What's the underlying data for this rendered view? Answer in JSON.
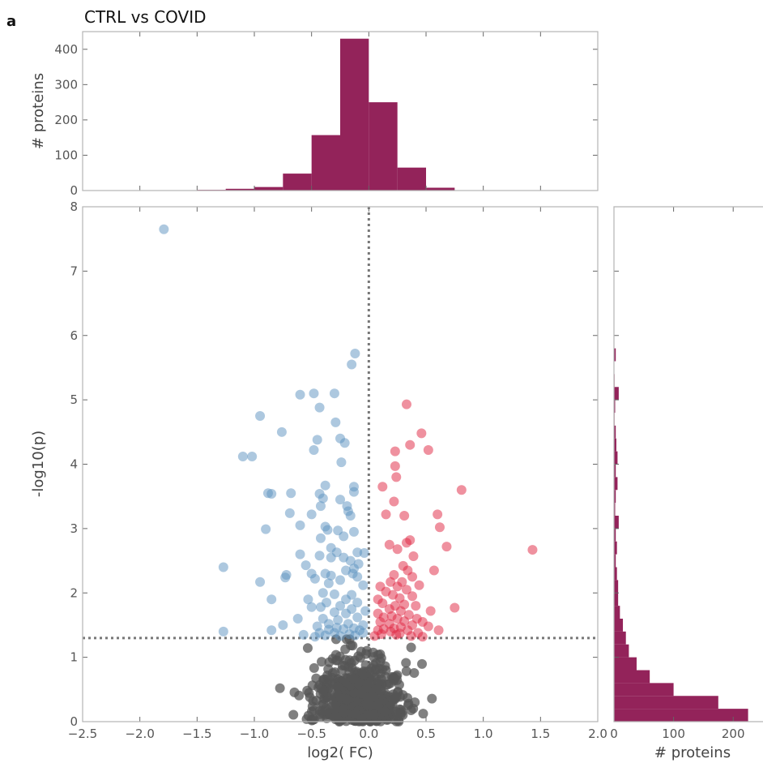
{
  "panel_letter": "a",
  "title": "CTRL vs COVID",
  "colors": {
    "histogram": "#93235a",
    "down": "#5b92c0",
    "up": "#e0243f",
    "nonsig": "#555555",
    "threshold_line": "#777777",
    "frame": "#b4b4b4"
  },
  "chart_data": [
    {
      "type": "scatter",
      "name": "volcano",
      "xlabel": "log2( FC)",
      "ylabel": "-log10(p)",
      "xlim": [
        -2.5,
        2.0
      ],
      "ylim": [
        0,
        8
      ],
      "xticks": [
        -2.5,
        -2.0,
        -1.5,
        -1.0,
        -0.5,
        0.0,
        0.5,
        1.0,
        1.5,
        2.0
      ],
      "xtick_labels": [
        "−2.5",
        "−2.0",
        "−1.5",
        "−1.0",
        "−0.5",
        "0.0",
        "0.5",
        "1.0",
        "1.5",
        "2.0"
      ],
      "yticks": [
        0,
        1,
        2,
        3,
        4,
        5,
        6,
        7,
        8
      ],
      "ytick_labels": [
        "0",
        "1",
        "2",
        "3",
        "4",
        "5",
        "6",
        "7",
        "8"
      ],
      "threshold_y": 1.3,
      "threshold_x": 0.0,
      "grid": false,
      "series": [
        {
          "category": "down",
          "points": [
            [
              -1.79,
              7.65
            ],
            [
              -0.12,
              5.72
            ],
            [
              -0.15,
              5.55
            ],
            [
              -0.6,
              5.08
            ],
            [
              -0.48,
              5.1
            ],
            [
              -0.3,
              5.1
            ],
            [
              -0.43,
              4.88
            ],
            [
              -0.95,
              4.75
            ],
            [
              -0.29,
              4.65
            ],
            [
              -0.76,
              4.5
            ],
            [
              -0.45,
              4.38
            ],
            [
              -0.25,
              4.4
            ],
            [
              -0.21,
              4.33
            ],
            [
              -0.48,
              4.22
            ],
            [
              -1.1,
              4.12
            ],
            [
              -1.02,
              4.12
            ],
            [
              -0.24,
              4.03
            ],
            [
              -0.88,
              3.55
            ],
            [
              -0.68,
              3.55
            ],
            [
              -0.43,
              3.54
            ],
            [
              -0.13,
              3.57
            ],
            [
              -0.38,
              3.67
            ],
            [
              -0.13,
              3.65
            ],
            [
              -0.85,
              3.54
            ],
            [
              -0.4,
              3.47
            ],
            [
              -0.25,
              3.45
            ],
            [
              -0.19,
              3.35
            ],
            [
              -0.42,
              3.35
            ],
            [
              -0.69,
              3.24
            ],
            [
              -0.5,
              3.22
            ],
            [
              -0.18,
              3.27
            ],
            [
              -0.16,
              3.2
            ],
            [
              -0.6,
              3.05
            ],
            [
              -0.38,
              3.03
            ],
            [
              -0.36,
              2.98
            ],
            [
              -0.27,
              2.97
            ],
            [
              -0.9,
              2.99
            ],
            [
              -0.13,
              2.95
            ],
            [
              -0.42,
              2.85
            ],
            [
              -0.22,
              2.88
            ],
            [
              -0.33,
              2.7
            ],
            [
              -0.1,
              2.63
            ],
            [
              -0.04,
              2.62
            ],
            [
              -0.28,
              2.63
            ],
            [
              -0.6,
              2.6
            ],
            [
              -0.43,
              2.58
            ],
            [
              -0.33,
              2.55
            ],
            [
              -0.22,
              2.55
            ],
            [
              -0.16,
              2.5
            ],
            [
              -0.55,
              2.43
            ],
            [
              -0.09,
              2.45
            ],
            [
              -0.13,
              2.38
            ],
            [
              -1.27,
              2.4
            ],
            [
              -0.5,
              2.3
            ],
            [
              -0.72,
              2.28
            ],
            [
              -0.38,
              2.3
            ],
            [
              -0.2,
              2.35
            ],
            [
              -0.33,
              2.27
            ],
            [
              -0.1,
              2.25
            ],
            [
              -0.47,
              2.22
            ],
            [
              -0.25,
              2.2
            ],
            [
              -0.14,
              2.3
            ],
            [
              -0.95,
              2.17
            ],
            [
              -0.73,
              2.24
            ],
            [
              -0.35,
              2.15
            ],
            [
              -0.05,
              2.12
            ],
            [
              -0.4,
              2.0
            ],
            [
              -0.3,
              1.98
            ],
            [
              -0.15,
              1.97
            ],
            [
              -0.53,
              1.9
            ],
            [
              -0.2,
              1.9
            ],
            [
              -0.85,
              1.9
            ],
            [
              -0.37,
              1.85
            ],
            [
              -0.1,
              1.85
            ],
            [
              -0.25,
              1.8
            ],
            [
              -0.42,
              1.78
            ],
            [
              -0.5,
              1.78
            ],
            [
              -0.15,
              1.75
            ],
            [
              -0.03,
              1.72
            ],
            [
              -0.3,
              1.7
            ],
            [
              -0.2,
              1.68
            ],
            [
              -0.62,
              1.6
            ],
            [
              -0.4,
              1.6
            ],
            [
              -0.1,
              1.62
            ],
            [
              -0.27,
              1.58
            ],
            [
              -0.35,
              1.52
            ],
            [
              -0.18,
              1.52
            ],
            [
              -0.75,
              1.5
            ],
            [
              -0.05,
              1.5
            ],
            [
              -0.45,
              1.48
            ],
            [
              -0.28,
              1.46
            ],
            [
              -0.13,
              1.45
            ],
            [
              -0.35,
              1.43
            ],
            [
              -0.22,
              1.44
            ],
            [
              -0.08,
              1.42
            ],
            [
              -0.85,
              1.42
            ],
            [
              -1.27,
              1.4
            ],
            [
              -0.57,
              1.35
            ],
            [
              -0.43,
              1.38
            ],
            [
              -0.3,
              1.38
            ],
            [
              -0.17,
              1.36
            ],
            [
              -0.05,
              1.38
            ],
            [
              -0.38,
              1.34
            ],
            [
              -0.25,
              1.33
            ],
            [
              -0.12,
              1.34
            ],
            [
              -0.47,
              1.32
            ]
          ]
        },
        {
          "category": "up",
          "points": [
            [
              0.33,
              4.93
            ],
            [
              0.46,
              4.48
            ],
            [
              0.36,
              4.3
            ],
            [
              0.52,
              4.22
            ],
            [
              0.23,
              4.2
            ],
            [
              0.23,
              3.97
            ],
            [
              0.24,
              3.8
            ],
            [
              0.81,
              3.6
            ],
            [
              0.12,
              3.65
            ],
            [
              0.22,
              3.42
            ],
            [
              0.15,
              3.22
            ],
            [
              0.31,
              3.2
            ],
            [
              0.6,
              3.22
            ],
            [
              0.62,
              3.02
            ],
            [
              0.36,
              2.82
            ],
            [
              0.33,
              2.78
            ],
            [
              0.18,
              2.75
            ],
            [
              0.25,
              2.68
            ],
            [
              0.68,
              2.72
            ],
            [
              1.43,
              2.67
            ],
            [
              0.39,
              2.57
            ],
            [
              0.3,
              2.42
            ],
            [
              0.34,
              2.35
            ],
            [
              0.57,
              2.35
            ],
            [
              0.22,
              2.28
            ],
            [
              0.38,
              2.25
            ],
            [
              0.19,
              2.17
            ],
            [
              0.29,
              2.17
            ],
            [
              0.44,
              2.12
            ],
            [
              0.25,
              2.1
            ],
            [
              0.1,
              2.1
            ],
            [
              0.33,
              2.05
            ],
            [
              0.15,
              2.02
            ],
            [
              0.21,
              1.97
            ],
            [
              0.38,
              1.95
            ],
            [
              0.27,
              1.92
            ],
            [
              0.08,
              1.9
            ],
            [
              0.12,
              1.84
            ],
            [
              0.31,
              1.82
            ],
            [
              0.23,
              1.8
            ],
            [
              0.41,
              1.8
            ],
            [
              0.75,
              1.77
            ],
            [
              0.18,
              1.75
            ],
            [
              0.28,
              1.72
            ],
            [
              0.54,
              1.72
            ],
            [
              0.08,
              1.68
            ],
            [
              0.35,
              1.66
            ],
            [
              0.2,
              1.64
            ],
            [
              0.13,
              1.62
            ],
            [
              0.42,
              1.6
            ],
            [
              0.25,
              1.6
            ],
            [
              0.31,
              1.56
            ],
            [
              0.1,
              1.55
            ],
            [
              0.47,
              1.55
            ],
            [
              0.18,
              1.52
            ],
            [
              0.38,
              1.5
            ],
            [
              0.28,
              1.47
            ],
            [
              0.52,
              1.48
            ],
            [
              0.22,
              1.45
            ],
            [
              0.13,
              1.44
            ],
            [
              0.08,
              1.42
            ],
            [
              0.34,
              1.42
            ],
            [
              0.61,
              1.42
            ],
            [
              0.19,
              1.4
            ],
            [
              0.43,
              1.38
            ],
            [
              0.27,
              1.37
            ],
            [
              0.11,
              1.36
            ],
            [
              0.24,
              1.35
            ],
            [
              0.37,
              1.33
            ],
            [
              0.05,
              1.33
            ],
            [
              0.47,
              1.32
            ]
          ]
        }
      ]
    },
    {
      "type": "bar",
      "name": "top-histogram",
      "orientation": "vertical",
      "ylabel": "# proteins",
      "xlim": [
        -2.5,
        2.0
      ],
      "ylim": [
        0,
        450
      ],
      "yticks": [
        0,
        100,
        200,
        300,
        400
      ],
      "ytick_labels": [
        "0",
        "100",
        "200",
        "300",
        "400"
      ],
      "bin_edges": [
        -1.75,
        -1.5,
        -1.25,
        -1.0,
        -0.75,
        -0.5,
        -0.25,
        0.0,
        0.25,
        0.5,
        0.75
      ],
      "counts": [
        0,
        2,
        5,
        10,
        48,
        157,
        430,
        250,
        65,
        8
      ]
    },
    {
      "type": "bar",
      "name": "right-histogram",
      "orientation": "horizontal",
      "xlabel": "# proteins",
      "xlim": [
        0,
        250
      ],
      "ylim": [
        0,
        8
      ],
      "xticks": [
        0,
        100,
        200
      ],
      "xtick_labels": [
        "0",
        "100",
        "200"
      ],
      "bin_edges": [
        0,
        0.2,
        0.4,
        0.6,
        0.8,
        1.0,
        1.2,
        1.4,
        1.6,
        1.8,
        2.0,
        2.2,
        2.4,
        2.6,
        2.8,
        3.0,
        3.2,
        3.4,
        3.6,
        3.8,
        4.0,
        4.2,
        4.4,
        4.6,
        4.8,
        5.0,
        5.2,
        5.4,
        5.6,
        5.8
      ],
      "counts": [
        225,
        175,
        100,
        60,
        38,
        25,
        20,
        15,
        10,
        7,
        7,
        5,
        3,
        5,
        3,
        8,
        2,
        3,
        6,
        3,
        6,
        4,
        3,
        1,
        2,
        8,
        1,
        0,
        3
      ]
    }
  ]
}
